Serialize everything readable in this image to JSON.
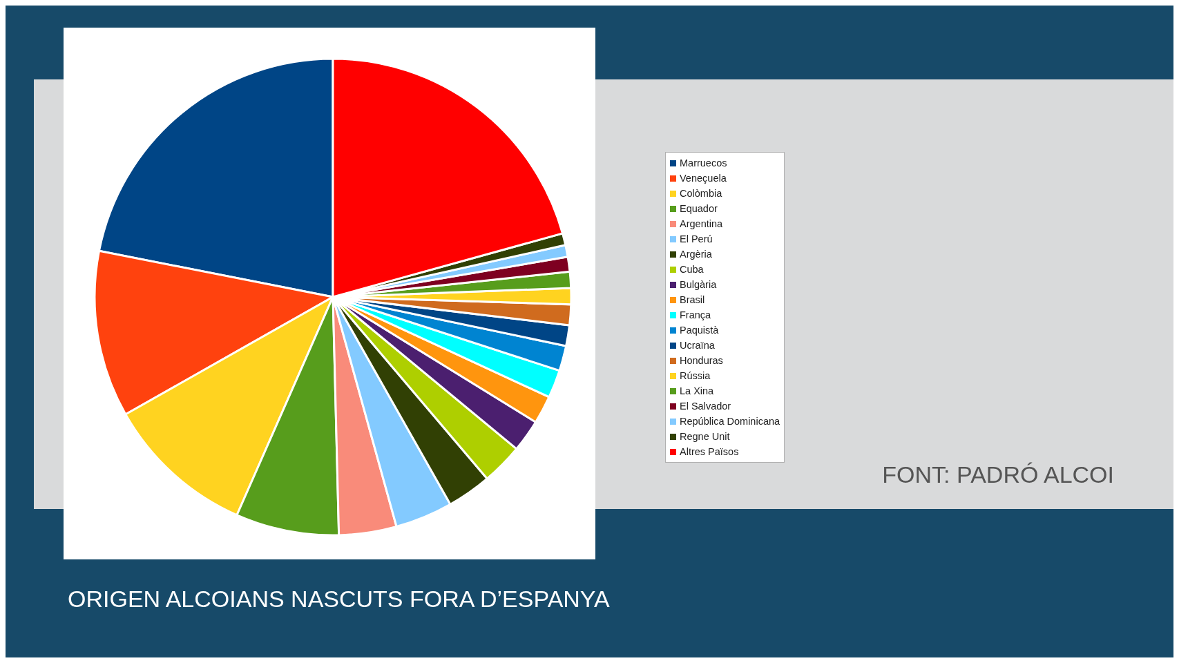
{
  "chart_data": {
    "type": "pie",
    "title": "ORIGEN ALCOIANS NASCUTS FORA D’ESPANYA",
    "annotations": [
      "FONT: PADRÓ ALCOI"
    ],
    "legend": "right",
    "categories": [
      "Marruecos",
      "Veneçuela",
      "Colòmbia",
      "Equador",
      "Argentina",
      "El Perú",
      "Argèria",
      "Cuba",
      "Bulgària",
      "Brasil",
      "França",
      "Paquistà",
      "Ucraïna",
      "Honduras",
      "Rússia",
      "La Xina",
      "El Salvador",
      "República Dominicana",
      "Regne Unit",
      "Altres Països"
    ],
    "values": [
      21.9,
      11.3,
      10.2,
      7.0,
      3.9,
      3.9,
      3.0,
      2.8,
      2.2,
      1.9,
      1.9,
      1.7,
      1.4,
      1.4,
      1.1,
      1.1,
      1.0,
      0.8,
      0.8,
      20.7
    ],
    "colors": [
      "#004586",
      "#ff420e",
      "#ffd320",
      "#579d1c",
      "#f98b7a",
      "#83caff",
      "#314004",
      "#aecf00",
      "#4b1f6f",
      "#ff950e",
      "#00ffff",
      "#0084d1",
      "#004586",
      "#d06b1e",
      "#ffd320",
      "#579d1c",
      "#7e0021",
      "#83caff",
      "#314004",
      "#ff0000"
    ]
  }
}
